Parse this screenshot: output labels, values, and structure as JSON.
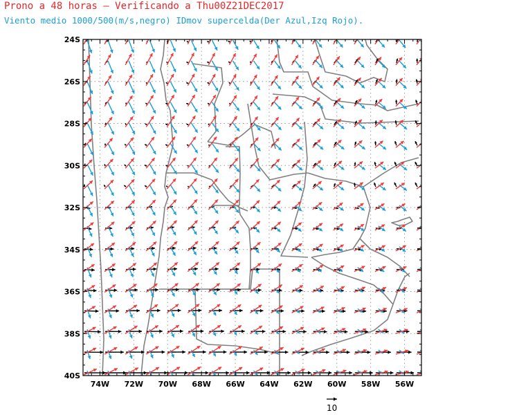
{
  "title": {
    "line1": "Prono a 48 horas — Verificando a Thu00Z21DEC2017",
    "line2": "Viento medio 1000/500(m/s,negro) IDmov supercelda(Der Azul,Izq Rojo)."
  },
  "map": {
    "lon_range": [
      -75,
      -55
    ],
    "lat_range": [
      -40,
      -24
    ],
    "lat_labels": [
      "24S",
      "26S",
      "28S",
      "30S",
      "32S",
      "34S",
      "36S",
      "38S",
      "40S"
    ],
    "lon_labels": [
      "74W",
      "72W",
      "70W",
      "68W",
      "66W",
      "64W",
      "62W",
      "60W",
      "58W",
      "56W"
    ],
    "grid": true,
    "colors": {
      "mean_wind": "#000000",
      "right_mover": "#1a9ed8",
      "left_mover": "#ef3b3b",
      "borders": "#808080",
      "grid": "#999999"
    }
  },
  "reference_vector": {
    "label": "10"
  }
}
